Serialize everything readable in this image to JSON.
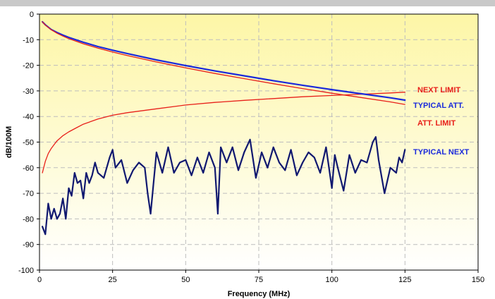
{
  "chart_data": {
    "type": "line",
    "xlabel": "Frequency (MHz)",
    "ylabel": "dB/100M",
    "xlim": [
      0,
      150
    ],
    "ylim": [
      -100,
      0
    ],
    "x_ticks": [
      0,
      25,
      50,
      75,
      100,
      125,
      150
    ],
    "y_ticks": [
      0,
      -10,
      -20,
      -30,
      -40,
      -50,
      -60,
      -70,
      -80,
      -90,
      -100
    ],
    "grid": true,
    "background_gradient": [
      "#fdf6a6",
      "#ffffff"
    ],
    "series": [
      {
        "name": "NEXT LIMIT",
        "color": "#e8201a",
        "x": [
          1,
          2,
          3,
          4,
          5,
          6,
          8,
          10,
          12.5,
          15,
          20,
          25,
          30,
          40,
          50,
          60,
          62.5,
          70,
          80,
          90,
          100,
          110,
          120,
          125
        ],
        "y": [
          -62,
          -57.5,
          -54.5,
          -52.5,
          -51,
          -49.5,
          -47.5,
          -46,
          -44.5,
          -43,
          -41,
          -39.5,
          -38.5,
          -37,
          -35.5,
          -34.5,
          -34.3,
          -33.7,
          -33,
          -32.3,
          -31.8,
          -31.3,
          -30.8,
          -30.5
        ]
      },
      {
        "name": "TYPICAL ATT.",
        "color": "#1a2adb",
        "x": [
          1,
          2,
          4,
          6,
          8,
          10,
          15,
          20,
          25,
          30,
          40,
          50,
          60,
          70,
          80,
          90,
          100,
          110,
          120,
          125
        ],
        "y": [
          -3,
          -4.2,
          -6,
          -7.2,
          -8.2,
          -9.1,
          -11,
          -12.7,
          -14.1,
          -15.4,
          -17.9,
          -20.1,
          -22.2,
          -24.1,
          -26,
          -27.8,
          -29.5,
          -31.1,
          -32.7,
          -33.6
        ]
      },
      {
        "name": "ATT. LIMIT",
        "color": "#e8201a",
        "x": [
          1,
          2,
          4,
          6,
          8,
          10,
          15,
          20,
          25,
          30,
          40,
          50,
          60,
          70,
          80,
          90,
          100,
          110,
          120,
          125
        ],
        "y": [
          -3,
          -4.3,
          -6.1,
          -7.5,
          -8.6,
          -9.6,
          -11.6,
          -13.3,
          -14.8,
          -16.2,
          -18.7,
          -21,
          -23.2,
          -25.2,
          -27.2,
          -29.1,
          -30.9,
          -32.6,
          -34.3,
          -35.3
        ]
      },
      {
        "name": "TYPICAL NEXT",
        "color": "#101870",
        "x": [
          1,
          2,
          3,
          4,
          5,
          6,
          7,
          8,
          9,
          10,
          11,
          12,
          13,
          14,
          15,
          16,
          17,
          18,
          19,
          20,
          22,
          24,
          25,
          26,
          28,
          30,
          32,
          34,
          36,
          37,
          38,
          40,
          42,
          44,
          46,
          48,
          50,
          52,
          54,
          56,
          58,
          60,
          61,
          62,
          64,
          66,
          68,
          70,
          72,
          74,
          76,
          78,
          80,
          82,
          84,
          86,
          88,
          90,
          92,
          94,
          96,
          98,
          100,
          101,
          102,
          104,
          106,
          108,
          110,
          112,
          114,
          115,
          116,
          118,
          120,
          122,
          123,
          124,
          125
        ],
        "y": [
          -83,
          -86,
          -74,
          -80,
          -76,
          -80,
          -78,
          -72,
          -80,
          -68,
          -71,
          -62,
          -66,
          -65,
          -72,
          -62,
          -66,
          -63,
          -58,
          -62,
          -64,
          -56,
          -53,
          -60,
          -57,
          -66,
          -61,
          -58,
          -60,
          -70,
          -78,
          -54,
          -62,
          -52,
          -62,
          -58,
          -57,
          -63,
          -56,
          -62,
          -54,
          -60,
          -78,
          -52,
          -58,
          -52,
          -61,
          -54,
          -49,
          -64,
          -54,
          -60,
          -52,
          -58,
          -61,
          -53,
          -63,
          -58,
          -54,
          -56,
          -62,
          -52,
          -68,
          -55,
          -60,
          -69,
          -55,
          -62,
          -57,
          -58,
          -50,
          -48,
          -57,
          -70,
          -60,
          -62,
          -56,
          -58,
          -53
        ]
      }
    ],
    "labels": [
      {
        "text": "NEXT LIMIT",
        "color": "#e8201a"
      },
      {
        "text": "TYPICAL ATT.",
        "color": "#1a2adb"
      },
      {
        "text": "ATT. LIMIT",
        "color": "#e8201a"
      },
      {
        "text": "TYPICAL NEXT",
        "color": "#1a2adb"
      }
    ]
  }
}
